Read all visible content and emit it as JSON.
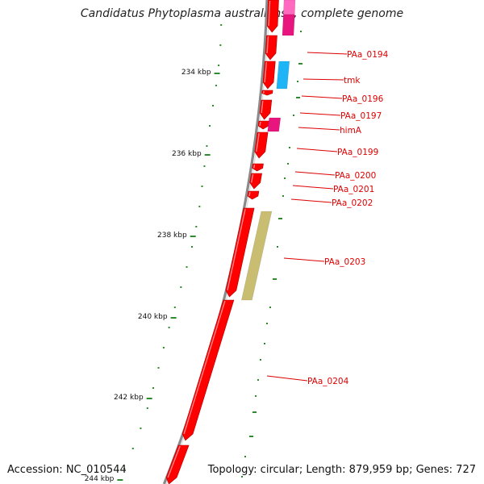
{
  "title": "Candidatus Phytoplasma australiense, complete genome",
  "accession": "Accession: NC_010544",
  "summary": "Topology: circular; Length: 879,959 bp; Genes: 727",
  "colors": {
    "backbone": "#7a7a7a",
    "cds": "#ff0000",
    "tmk": "#1fb4f5",
    "himA": "#e8157e",
    "top_pink": "#ff69c0",
    "PAa_0203_track": "#c9bd72",
    "gc_dots": "#2e8b2e",
    "label": "#dd0000"
  },
  "scale_ticks": [
    {
      "label": "234 kbp"
    },
    {
      "label": "236 kbp"
    },
    {
      "label": "238 kbp"
    },
    {
      "label": "240 kbp"
    },
    {
      "label": "242 kbp"
    },
    {
      "label": "244 kbp"
    }
  ],
  "genes": [
    {
      "label": "PAa_0194"
    },
    {
      "label": "tmk"
    },
    {
      "label": "PAa_0196"
    },
    {
      "label": "PAa_0197"
    },
    {
      "label": "himA"
    },
    {
      "label": "PAa_0199"
    },
    {
      "label": "PAa_0200"
    },
    {
      "label": "PAa_0201"
    },
    {
      "label": "PAa_0202"
    },
    {
      "label": "PAa_0203"
    },
    {
      "label": "PAa_0204"
    }
  ]
}
